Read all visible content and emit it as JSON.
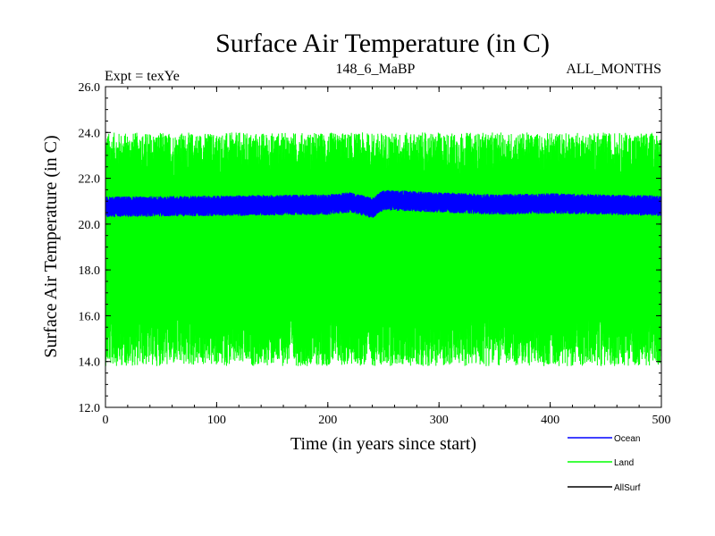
{
  "chart_data": {
    "type": "line",
    "title": "Surface Air Temperature (in C)",
    "subtitle_left": "Expt = texYe",
    "subtitle_center": "148_6_MaBP",
    "subtitle_right": "ALL_MONTHS",
    "xlabel": "Time (in years since start)",
    "ylabel": "Surface Air Temperature (in C)",
    "xlim": [
      0,
      500
    ],
    "ylim": [
      12.0,
      26.0
    ],
    "x_ticks": [
      "0",
      "100",
      "200",
      "300",
      "400",
      "500"
    ],
    "y_ticks": [
      "12.0",
      "14.0",
      "16.0",
      "18.0",
      "20.0",
      "22.0",
      "24.0",
      "26.0"
    ],
    "grid": false,
    "legend_position": "bottom-right",
    "series": [
      {
        "name": "Ocean",
        "color": "#0000ff",
        "mean": 20.8,
        "amplitude": 0.45,
        "legend_label": "Ocean",
        "trend": [
          [
            0,
            20.75
          ],
          [
            100,
            20.8
          ],
          [
            200,
            20.85
          ],
          [
            220,
            20.95
          ],
          [
            240,
            20.7
          ],
          [
            250,
            21.05
          ],
          [
            300,
            20.95
          ],
          [
            350,
            20.85
          ],
          [
            400,
            20.9
          ],
          [
            500,
            20.8
          ]
        ]
      },
      {
        "name": "Land",
        "color": "#00ff00",
        "mean": 19.4,
        "amplitude_low": 5.6,
        "amplitude_high": 4.6,
        "legend_label": "Land"
      },
      {
        "name": "AllSurf",
        "color": "#000000",
        "legend_label": "AllSurf"
      }
    ]
  }
}
